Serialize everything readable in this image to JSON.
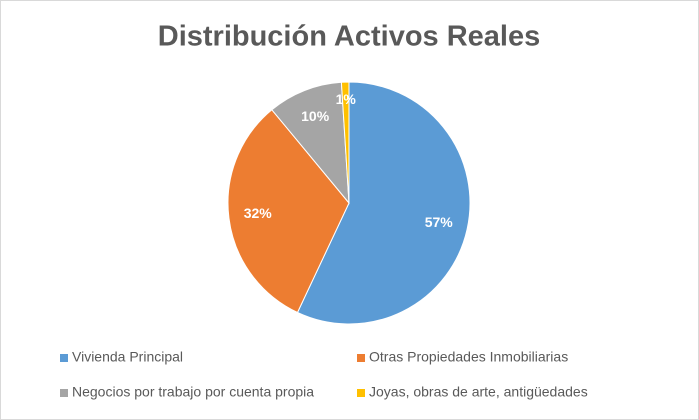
{
  "chart_data": {
    "type": "pie",
    "title": "Distribución Activos Reales",
    "categories": [
      "Vivienda Principal",
      "Otras Propiedades Inmobiliarias",
      "Negocios por trabajo por cuenta propia",
      "Joyas, obras de arte, antigüedades"
    ],
    "values": [
      57,
      32,
      10,
      1
    ],
    "value_labels": [
      "57%",
      "32%",
      "10%",
      "1%"
    ],
    "colors": [
      "#5b9bd5",
      "#ed7d31",
      "#a5a5a5",
      "#ffc000"
    ]
  }
}
